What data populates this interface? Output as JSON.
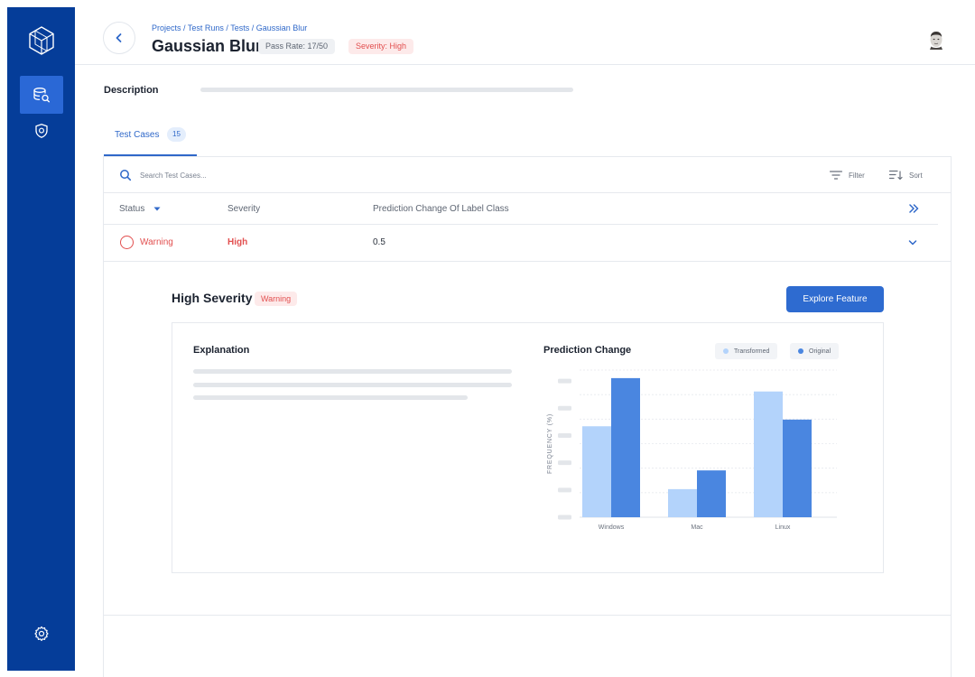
{
  "sidebar": {
    "logo_icon": "cube-logo-icon",
    "items": [
      {
        "icon": "database-search-icon",
        "active": true
      },
      {
        "icon": "shield-icon",
        "active": false
      }
    ],
    "settings_icon": "gear-icon"
  },
  "header": {
    "breadcrumb": "Projects / Test Runs / Tests / Gaussian Blur",
    "title": "Gaussian Blur",
    "pass_rate": "Pass Rate: 17/50",
    "severity_badge": "Severity: High"
  },
  "description": {
    "label": "Description"
  },
  "tabs": [
    {
      "label": "Test Cases",
      "count": "15"
    }
  ],
  "toolbar": {
    "search_placeholder": "Search Test Cases...",
    "filter_label": "Filter",
    "sort_label": "Sort"
  },
  "table": {
    "columns": [
      "Status",
      "Severity",
      "Prediction Change Of Label Class"
    ],
    "rows": [
      {
        "status": "Warning",
        "severity": "High",
        "prediction_change": "0.5"
      }
    ]
  },
  "detail": {
    "title": "High Severity",
    "badge": "Warning",
    "explore_label": "Explore Feature",
    "explanation_title": "Explanation",
    "prediction_title": "Prediction Change",
    "legend": [
      {
        "name": "Transformed",
        "color": "#b3d3fb"
      },
      {
        "name": "Original",
        "color": "#4a86e0"
      }
    ]
  },
  "chart_data": {
    "type": "bar",
    "categories": [
      "Windows",
      "Mac",
      "Linux"
    ],
    "series": [
      {
        "name": "Transformed",
        "color": "#b3d3fb",
        "values": [
          34,
          10.5,
          47
        ]
      },
      {
        "name": "Original",
        "color": "#4a86e0",
        "values": [
          52,
          17.5,
          36.5
        ]
      }
    ],
    "ylabel": "FREQUENCY (%)",
    "ylim": [
      0,
      55
    ],
    "grid": true,
    "legend": "top-right"
  }
}
